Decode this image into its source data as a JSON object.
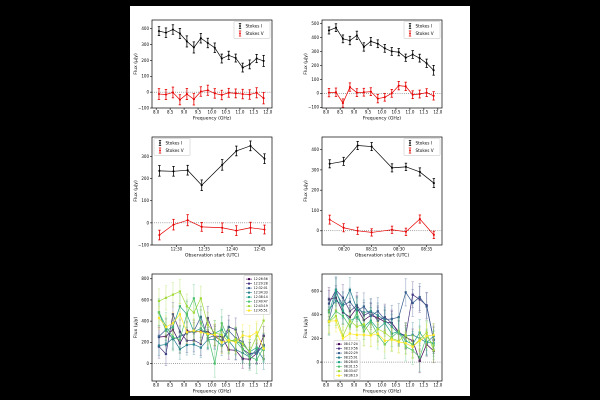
{
  "figure": {
    "background": "#000000",
    "canvas_background": "#ffffff",
    "ink_color": "#000000",
    "stokes_i_color": "#000000",
    "stokes_v_color": "#e60000",
    "viridis_palette": [
      "#440154",
      "#46327e",
      "#365c8d",
      "#277f8e",
      "#1fa187",
      "#4ac16d",
      "#a0da39",
      "#fde725"
    ]
  },
  "chart_data": [
    {
      "id": "top-left",
      "type": "line",
      "xlabel": "Frequency (GHz)",
      "ylabel": "Flux (μJy)",
      "axes": [
        22,
        14,
        120,
        88
      ],
      "xlim": [
        7.85,
        12.15
      ],
      "ylim": [
        -100,
        455
      ],
      "xticks": [
        8,
        8.5,
        9,
        9.5,
        10,
        10.5,
        11,
        11.5,
        12
      ],
      "xtick_labels": [
        "8.0",
        "8.5",
        "9.0",
        "9.5",
        "10.0",
        "10.5",
        "11.0",
        "11.5",
        "12.0"
      ],
      "yticks": [
        -100,
        0,
        100,
        200,
        300,
        400
      ],
      "ytick_labels": [
        "−100",
        "0",
        "100",
        "200",
        "300",
        "400"
      ],
      "zero_line": true,
      "err_alpha": 1,
      "legend": {
        "position": "top-right",
        "style": "errorbar"
      },
      "x": [
        8.1,
        8.35,
        8.6,
        8.85,
        9.1,
        9.35,
        9.6,
        9.85,
        10.1,
        10.35,
        10.6,
        10.85,
        11.1,
        11.35,
        11.6,
        11.85
      ],
      "series": [
        {
          "name": "Stokes I",
          "color": "#000000",
          "marker": "dot",
          "values": [
            385,
            375,
            395,
            370,
            320,
            282,
            340,
            310,
            280,
            212,
            232,
            215,
            155,
            175,
            212,
            197
          ],
          "errors": [
            28,
            30,
            30,
            32,
            35,
            35,
            30,
            30,
            30,
            28,
            26,
            25,
            28,
            28,
            26,
            35
          ]
        },
        {
          "name": "Stokes V",
          "color": "#e60000",
          "marker": "dot",
          "values": [
            -12,
            -15,
            -2,
            -48,
            -12,
            -45,
            4,
            12,
            -8,
            -18,
            -4,
            -8,
            -12,
            -15,
            -4,
            -38
          ],
          "errors": [
            34,
            32,
            34,
            32,
            35,
            36,
            30,
            32,
            30,
            30,
            28,
            28,
            30,
            30,
            32,
            36
          ]
        }
      ]
    },
    {
      "id": "top-right",
      "type": "line",
      "xlabel": "Frequency (GHz)",
      "ylabel": "Flux (μJy)",
      "axes": [
        192,
        14,
        120,
        88
      ],
      "xlim": [
        7.85,
        12.15
      ],
      "ylim": [
        -105,
        525
      ],
      "xticks": [
        8,
        8.5,
        9,
        9.5,
        10,
        10.5,
        11,
        11.5,
        12
      ],
      "xtick_labels": [
        "8.0",
        "8.5",
        "9.0",
        "9.5",
        "10.0",
        "10.5",
        "11.0",
        "11.5",
        "12.0"
      ],
      "yticks": [
        -100,
        0,
        100,
        200,
        300,
        400,
        500
      ],
      "ytick_labels": [
        "−100",
        "0",
        "100",
        "200",
        "300",
        "400",
        "500"
      ],
      "zero_line": true,
      "err_alpha": 1,
      "legend": {
        "position": "top-right",
        "style": "errorbar"
      },
      "x": [
        8.1,
        8.35,
        8.6,
        8.85,
        9.1,
        9.35,
        9.6,
        9.85,
        10.1,
        10.35,
        10.6,
        10.85,
        11.1,
        11.35,
        11.6,
        11.85
      ],
      "series": [
        {
          "name": "Stokes I",
          "color": "#000000",
          "marker": "dot",
          "values": [
            450,
            470,
            390,
            378,
            415,
            332,
            372,
            355,
            322,
            300,
            295,
            255,
            278,
            252,
            215,
            165
          ],
          "errors": [
            25,
            28,
            28,
            30,
            30,
            30,
            28,
            28,
            28,
            28,
            26,
            26,
            28,
            28,
            30,
            35
          ]
        },
        {
          "name": "Stokes V",
          "color": "#e60000",
          "marker": "dot",
          "values": [
            5,
            8,
            -70,
            45,
            5,
            8,
            12,
            -38,
            -28,
            0,
            55,
            50,
            -10,
            -5,
            5,
            -18
          ],
          "errors": [
            30,
            30,
            30,
            30,
            28,
            28,
            28,
            30,
            28,
            28,
            30,
            30,
            28,
            28,
            28,
            30
          ]
        }
      ]
    },
    {
      "id": "middle-left",
      "type": "line",
      "xlabel": "Observation start (UTC)",
      "ylabel": "Flux (μJy)",
      "axes": [
        22,
        131,
        120,
        108
      ],
      "xlim": [
        25.6,
        47.2
      ],
      "ylim": [
        -100,
        388
      ],
      "xticks": [
        30,
        35,
        40,
        45
      ],
      "xtick_labels": [
        "12:30",
        "12:35",
        "12:40",
        "12:45"
      ],
      "yticks": [
        -100,
        0,
        100,
        200,
        300
      ],
      "ytick_labels": [
        "−100",
        "0",
        "100",
        "200",
        "300"
      ],
      "zero_line": true,
      "err_alpha": 1,
      "legend": {
        "position": "top-left",
        "style": "errorbar"
      },
      "x": [
        26.93,
        29.47,
        32.02,
        34.55,
        38.23,
        40.78,
        43.32,
        45.85
      ],
      "series": [
        {
          "name": "Stokes I",
          "color": "#000000",
          "marker": "dot",
          "values": [
            235,
            233,
            238,
            170,
            262,
            325,
            348,
            290
          ],
          "errors": [
            24,
            22,
            22,
            24,
            24,
            22,
            22,
            22
          ]
        },
        {
          "name": "Stokes V",
          "color": "#e60000",
          "marker": "dot",
          "values": [
            -55,
            -8,
            12,
            -18,
            -22,
            -35,
            -22,
            -30
          ],
          "errors": [
            22,
            24,
            25,
            20,
            22,
            22,
            25,
            20
          ]
        }
      ]
    },
    {
      "id": "middle-right",
      "type": "line",
      "xlabel": "Observation start (UTC)",
      "ylabel": "Flux (μJy)",
      "axes": [
        192,
        131,
        120,
        108
      ],
      "xlim": [
        16.0,
        37.8
      ],
      "ylim": [
        -70,
        462
      ],
      "xticks": [
        20,
        25,
        30,
        35
      ],
      "xtick_labels": [
        "08:20",
        "08:25",
        "08:30",
        "08:35"
      ],
      "yticks": [
        0,
        100,
        200,
        300,
        400
      ],
      "ytick_labels": [
        "0",
        "100",
        "200",
        "300",
        "400"
      ],
      "zero_line": true,
      "err_alpha": 1,
      "legend": {
        "position": "top-right",
        "style": "errorbar"
      },
      "x": [
        17.4,
        19.93,
        22.48,
        25.02,
        28.72,
        31.25,
        33.78,
        36.32
      ],
      "series": [
        {
          "name": "Stokes I",
          "color": "#000000",
          "marker": "dot",
          "values": [
            330,
            342,
            420,
            415,
            310,
            315,
            290,
            235
          ],
          "errors": [
            20,
            20,
            20,
            20,
            20,
            18,
            20,
            22
          ]
        },
        {
          "name": "Stokes V",
          "color": "#e60000",
          "marker": "dot",
          "values": [
            55,
            15,
            0,
            -8,
            5,
            -5,
            58,
            -20
          ],
          "errors": [
            22,
            20,
            18,
            18,
            18,
            18,
            20,
            18
          ]
        }
      ]
    },
    {
      "id": "bottom-left",
      "type": "line",
      "xlabel": "Frequency (GHz)",
      "ylabel": "Flux (μJy)",
      "axes": [
        22,
        268,
        120,
        107
      ],
      "xlim": [
        7.85,
        12.15
      ],
      "ylim": [
        -165,
        845
      ],
      "xticks": [
        8,
        8.5,
        9,
        9.5,
        10,
        10.5,
        11,
        11.5,
        12
      ],
      "xtick_labels": [
        "8.0",
        "8.5",
        "9.0",
        "9.5",
        "10.0",
        "10.5",
        "11.0",
        "11.5",
        "12.0"
      ],
      "yticks": [
        0,
        200,
        400,
        600,
        800
      ],
      "ytick_labels": [
        "0",
        "200",
        "400",
        "600",
        "800"
      ],
      "zero_line": true,
      "err_alpha": 0.38,
      "legend": {
        "position": "top-right",
        "style": "line-square"
      },
      "x": [
        8.1,
        8.35,
        8.6,
        8.85,
        9.1,
        9.35,
        9.6,
        9.85,
        10.1,
        10.35,
        10.6,
        10.85,
        11.1,
        11.35,
        11.6,
        11.85
      ],
      "series": [
        {
          "name": "12:26:56",
          "color": "#440154",
          "marker": "square",
          "err": 90,
          "values": [
            250,
            255,
            320,
            190,
            310,
            295,
            305,
            300,
            260,
            255,
            130,
            125,
            45,
            40,
            95,
            260
          ]
        },
        {
          "name": "12:29:28",
          "color": "#46327e",
          "marker": "square",
          "err": 110,
          "values": [
            160,
            90,
            465,
            300,
            215,
            220,
            185,
            430,
            255,
            210,
            345,
            320,
            135,
            90,
            105,
            170
          ]
        },
        {
          "name": "12:32:01",
          "color": "#365c8d",
          "marker": "square",
          "err": 100,
          "values": [
            255,
            320,
            230,
            255,
            285,
            305,
            440,
            240,
            265,
            215,
            310,
            240,
            205,
            100,
            95,
            175
          ]
        },
        {
          "name": "12:34:33",
          "color": "#277f8e",
          "marker": "square",
          "err": 95,
          "values": [
            170,
            180,
            240,
            135,
            175,
            180,
            150,
            225,
            230,
            170,
            215,
            130,
            100,
            60,
            135,
            40
          ]
        },
        {
          "name": "12:38:14",
          "color": "#1fa187",
          "marker": "square",
          "err": 120,
          "values": [
            480,
            310,
            345,
            540,
            465,
            300,
            330,
            270,
            285,
            320,
            220,
            210,
            180,
            110,
            150,
            130
          ]
        },
        {
          "name": "12:40:47",
          "color": "#4ac16d",
          "marker": "square",
          "err": 130,
          "values": [
            485,
            350,
            250,
            225,
            470,
            615,
            380,
            270,
            0,
            380,
            225,
            210,
            135,
            65,
            35,
            150
          ]
        },
        {
          "name": "12:43:19",
          "color": "#a0da39",
          "marker": "square",
          "err": 115,
          "values": [
            590,
            620,
            650,
            680,
            540,
            480,
            615,
            365,
            290,
            270,
            205,
            230,
            185,
            110,
            260,
            405
          ]
        },
        {
          "name": "12:45:51",
          "color": "#fde725",
          "marker": "square",
          "err": 105,
          "values": [
            430,
            345,
            380,
            465,
            295,
            310,
            295,
            280,
            270,
            200,
            220,
            200,
            265,
            255,
            295,
            140
          ]
        }
      ]
    },
    {
      "id": "bottom-right",
      "type": "line",
      "xlabel": "Frequency (GHz)",
      "ylabel": "Flux (μJy)",
      "axes": [
        192,
        268,
        120,
        107
      ],
      "xlim": [
        7.85,
        12.15
      ],
      "ylim": [
        -160,
        745
      ],
      "xticks": [
        8,
        8.5,
        9,
        9.5,
        10,
        10.5,
        11,
        11.5,
        12
      ],
      "xtick_labels": [
        "8.0",
        "8.5",
        "9.0",
        "9.5",
        "10.0",
        "10.5",
        "11.0",
        "11.5",
        "12.0"
      ],
      "yticks": [
        0,
        200,
        400,
        600
      ],
      "ytick_labels": [
        "0",
        "200",
        "400",
        "600"
      ],
      "zero_line": true,
      "err_alpha": 0.38,
      "legend": {
        "position": "bottom-left",
        "style": "line-square"
      },
      "x": [
        8.1,
        8.35,
        8.6,
        8.85,
        9.1,
        9.35,
        9.6,
        9.85,
        10.1,
        10.35,
        10.6,
        10.85,
        11.1,
        11.35,
        11.6,
        11.85
      ],
      "series": [
        {
          "name": "08:17:24",
          "color": "#440154",
          "marker": "square",
          "err": 100,
          "values": [
            530,
            545,
            420,
            380,
            460,
            355,
            395,
            375,
            340,
            330,
            255,
            210,
            180,
            10,
            150,
            95
          ]
        },
        {
          "name": "08:19:56",
          "color": "#46327e",
          "marker": "square",
          "err": 110,
          "values": [
            495,
            610,
            545,
            430,
            480,
            395,
            425,
            350,
            380,
            330,
            245,
            225,
            570,
            530,
            480,
            185
          ]
        },
        {
          "name": "08:22:29",
          "color": "#365c8d",
          "marker": "square",
          "err": 115,
          "values": [
            350,
            590,
            480,
            510,
            430,
            470,
            390,
            430,
            360,
            365,
            380,
            590,
            500,
            550,
            470,
            190
          ]
        },
        {
          "name": "08:25:01",
          "color": "#277f8e",
          "marker": "square",
          "err": 105,
          "values": [
            440,
            520,
            480,
            610,
            450,
            420,
            430,
            395,
            355,
            300,
            240,
            220,
            230,
            200,
            165,
            220
          ]
        },
        {
          "name": "08:28:43",
          "color": "#1fa187",
          "marker": "square",
          "err": 110,
          "values": [
            420,
            610,
            435,
            350,
            380,
            300,
            350,
            280,
            330,
            240,
            260,
            180,
            150,
            250,
            170,
            160
          ]
        },
        {
          "name": "08:31:15",
          "color": "#4ac16d",
          "marker": "square",
          "err": 120,
          "values": [
            345,
            430,
            390,
            300,
            420,
            260,
            340,
            230,
            150,
            210,
            260,
            130,
            100,
            40,
            220,
            140
          ]
        },
        {
          "name": "08:33:47",
          "color": "#a0da39",
          "marker": "square",
          "err": 100,
          "values": [
            340,
            390,
            220,
            350,
            300,
            320,
            230,
            280,
            250,
            200,
            180,
            230,
            130,
            190,
            250,
            100
          ]
        },
        {
          "name": "08:36:19",
          "color": "#fde725",
          "marker": "square",
          "err": 95,
          "values": [
            345,
            350,
            200,
            240,
            230,
            230,
            225,
            240,
            180,
            190,
            170,
            160,
            130,
            180,
            220,
            230
          ]
        }
      ]
    }
  ]
}
